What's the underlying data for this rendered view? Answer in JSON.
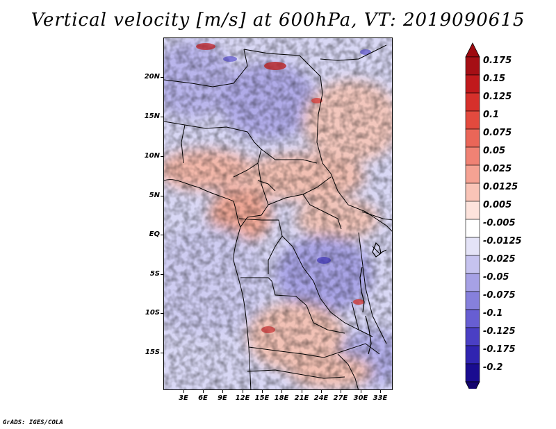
{
  "title": "Vertical velocity [m/s] at 600hPa, VT: 2019090615",
  "footer": "GrADS: IGES/COLA",
  "map": {
    "lat_labels": [
      "20N",
      "15N",
      "10N",
      "5N",
      "EQ",
      "5S",
      "10S",
      "15S"
    ],
    "lon_labels": [
      "3E",
      "6E",
      "9E",
      "12E",
      "15E",
      "18E",
      "21E",
      "24E",
      "27E",
      "30E",
      "33E"
    ]
  },
  "colorbar": {
    "labels": [
      "0.175",
      "0.15",
      "0.125",
      "0.1",
      "0.075",
      "0.05",
      "0.025",
      "0.0125",
      "0.005",
      "-0.005",
      "-0.0125",
      "-0.025",
      "-0.05",
      "-0.075",
      "-0.1",
      "-0.125",
      "-0.175",
      "-0.2"
    ],
    "colors": [
      "#a50f15",
      "#c0191c",
      "#d6302b",
      "#e34a3e",
      "#ea6658",
      "#f08274",
      "#f5a293",
      "#f9c4b7",
      "#fde3dc",
      "#ffffff",
      "#e4e3f7",
      "#c6c3ef",
      "#a6a1e5",
      "#8680dc",
      "#675ed2",
      "#4a3fc4",
      "#3024b0",
      "#1a0c90"
    ]
  }
}
